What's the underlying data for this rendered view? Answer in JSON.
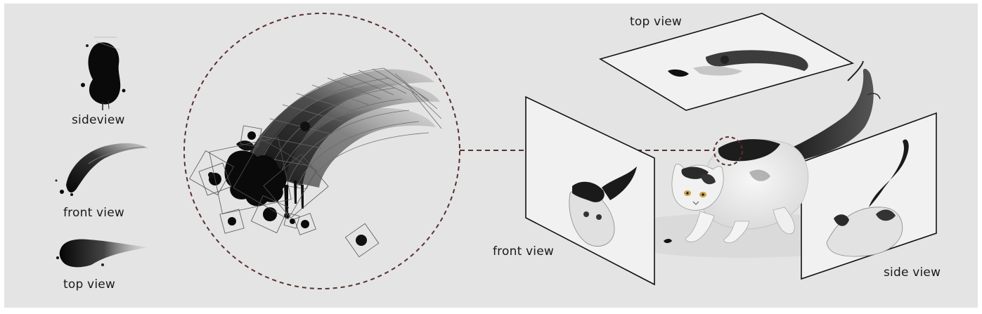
{
  "left_column": {
    "sideview_label": "sideview",
    "front_view_label": "front view",
    "top_view_label": "top view"
  },
  "cat_scene": {
    "top_view_label": "top view",
    "front_view_label": "front view",
    "side_view_label": "side view"
  },
  "colors": {
    "background": "#e4e4e4",
    "ink": "#0a0a0a",
    "dashed_callout": "#5a3030",
    "panel_frame": "#111111"
  }
}
